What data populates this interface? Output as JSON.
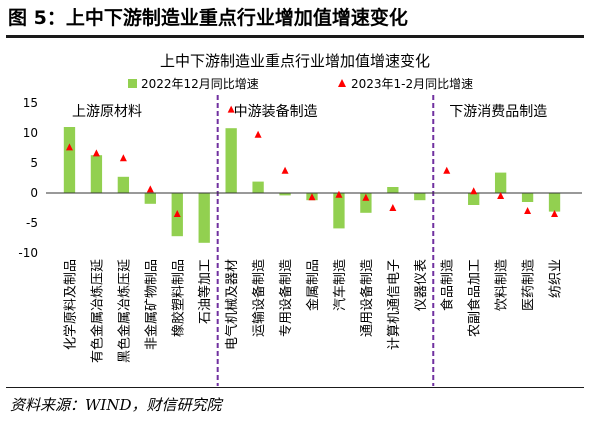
{
  "figure": {
    "title": "图 5：上中下游制造业重点行业增加值增速变化",
    "source": "资料来源：WIND，财信研究院"
  },
  "colors": {
    "bar": "#92d050",
    "marker": "#ff0000",
    "separator": "#7030a0",
    "axis": "#333333",
    "text": "#000000"
  },
  "chart_data": {
    "type": "bar",
    "title": "上中下游制造业重点行业增加值增速变化",
    "legend_position": "top",
    "ylim": [
      -10,
      15
    ],
    "yticks": [
      -10,
      -5,
      0,
      5,
      10,
      15
    ],
    "grid": false,
    "categories": [
      "化学原料及制品",
      "有色金属冶炼压延",
      "黑色金属冶炼压延",
      "非金属矿物制品",
      "橡胶塑料制品",
      "石油等加工",
      "电气机械及器材",
      "运输设备制造",
      "专用设备制造",
      "金属制品",
      "汽车制造",
      "通用设备制造",
      "计算机通信电子",
      "仪器仪表",
      "食品制造",
      "农副食品加工",
      "饮料制造",
      "医药制造",
      "纺织业"
    ],
    "series": [
      {
        "name": "2022年12月同比增速",
        "kind": "bar",
        "values": [
          11.0,
          6.3,
          2.7,
          -1.8,
          -7.2,
          -8.3,
          10.8,
          1.9,
          -0.4,
          -1.2,
          -5.9,
          -3.3,
          1.0,
          -1.2,
          0.0,
          -2.0,
          3.4,
          -1.5,
          -3.1
        ]
      },
      {
        "name": "2023年1-2月同比增速",
        "kind": "marker",
        "values": [
          7.6,
          6.6,
          5.8,
          0.6,
          -3.5,
          null,
          13.9,
          9.7,
          3.7,
          -0.7,
          -0.3,
          -0.8,
          -2.5,
          null,
          3.7,
          0.3,
          -0.5,
          -3.0,
          -3.5
        ]
      }
    ],
    "groups": [
      {
        "label": "上游原材料",
        "from": 0,
        "to": 5
      },
      {
        "label": "中游装备制造",
        "from": 6,
        "to": 13
      },
      {
        "label": "下游消费品制造",
        "from": 14,
        "to": 18
      }
    ]
  }
}
